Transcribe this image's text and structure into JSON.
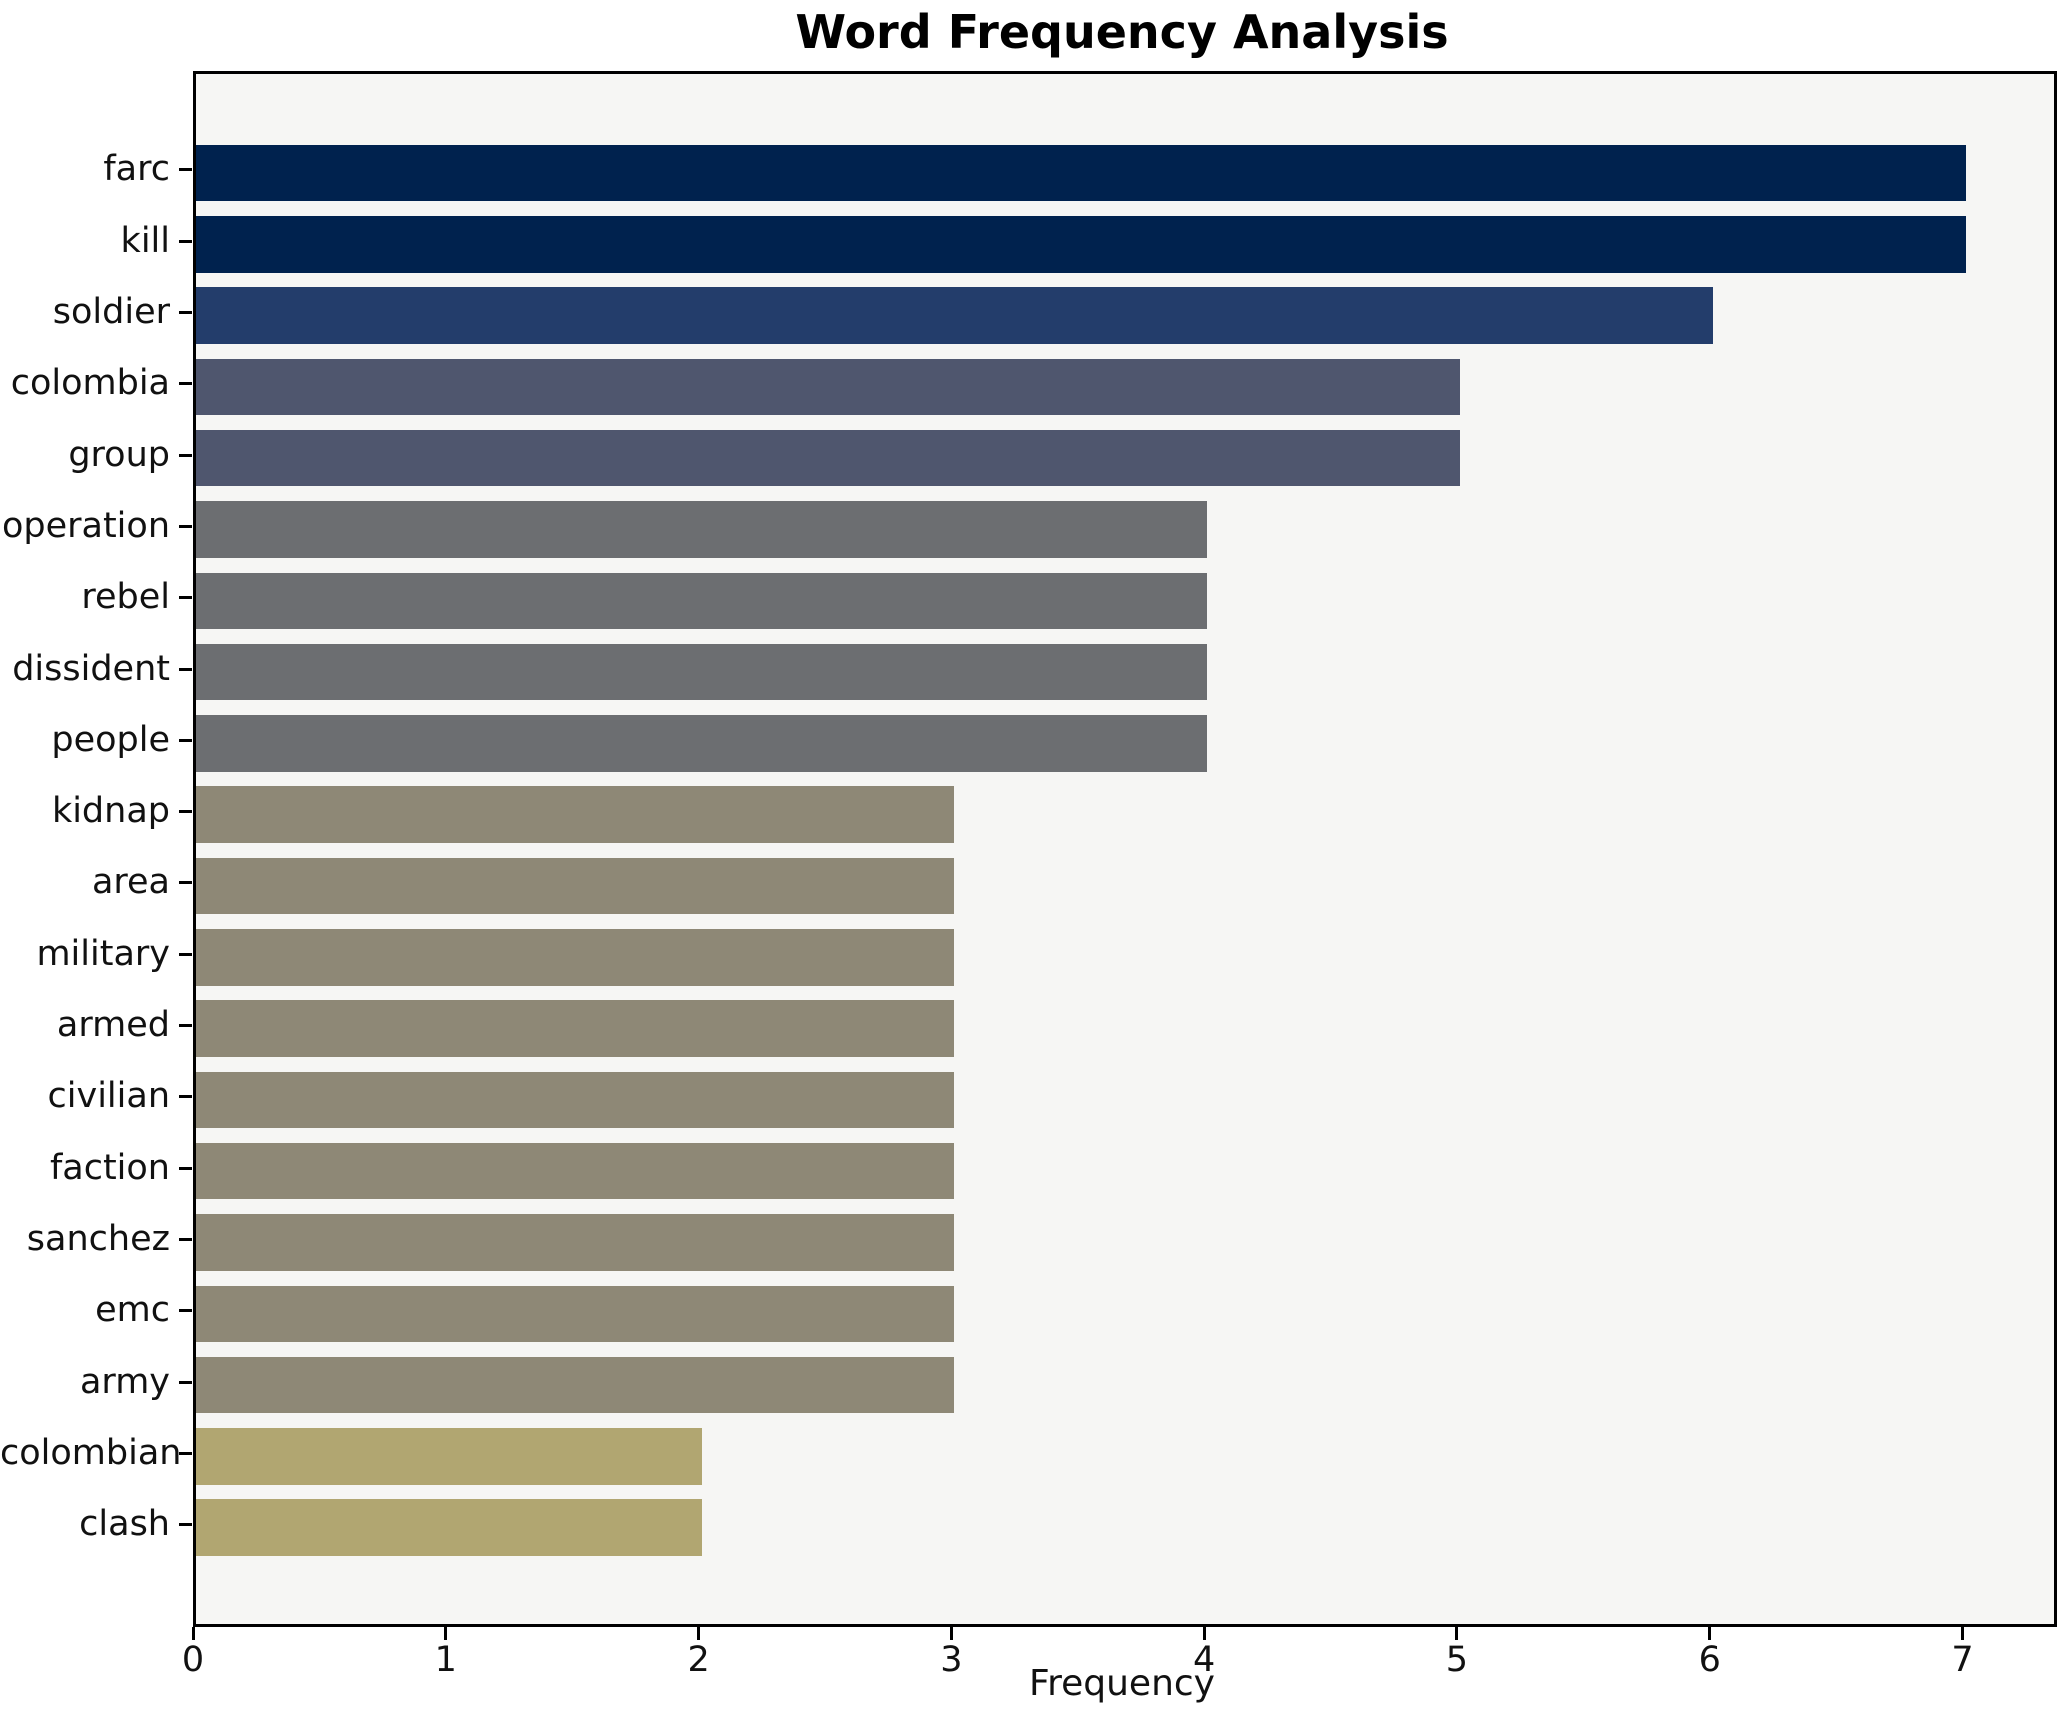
{
  "title": "Word Frequency Analysis",
  "chart_data": {
    "type": "bar",
    "orientation": "horizontal",
    "title": "Word Frequency Analysis",
    "xlabel": "Frequency",
    "ylabel": "",
    "categories": [
      "farc",
      "kill",
      "soldier",
      "colombia",
      "group",
      "operation",
      "rebel",
      "dissident",
      "people",
      "kidnap",
      "area",
      "military",
      "armed",
      "civilian",
      "faction",
      "sanchez",
      "emc",
      "army",
      "colombian",
      "clash"
    ],
    "values": [
      7,
      7,
      6,
      5,
      5,
      4,
      4,
      4,
      4,
      3,
      3,
      3,
      3,
      3,
      3,
      3,
      3,
      3,
      2,
      2
    ],
    "bar_colors": [
      "#00224e",
      "#00224e",
      "#233d6b",
      "#4f566e",
      "#4f566e",
      "#6c6e71",
      "#6c6e71",
      "#6c6e71",
      "#6c6e71",
      "#8e8876",
      "#8e8876",
      "#8e8876",
      "#8e8876",
      "#8e8876",
      "#8e8876",
      "#8e8876",
      "#8e8876",
      "#8e8876",
      "#b1a671",
      "#b1a671"
    ],
    "xlim": [
      0,
      7.35
    ],
    "xticks": [
      0,
      1,
      2,
      3,
      4,
      5,
      6,
      7
    ],
    "grid": false,
    "legend_position": "none",
    "plot_background": "#f6f6f4",
    "figure_background": "#ffffff",
    "spine_color": "#000000"
  }
}
